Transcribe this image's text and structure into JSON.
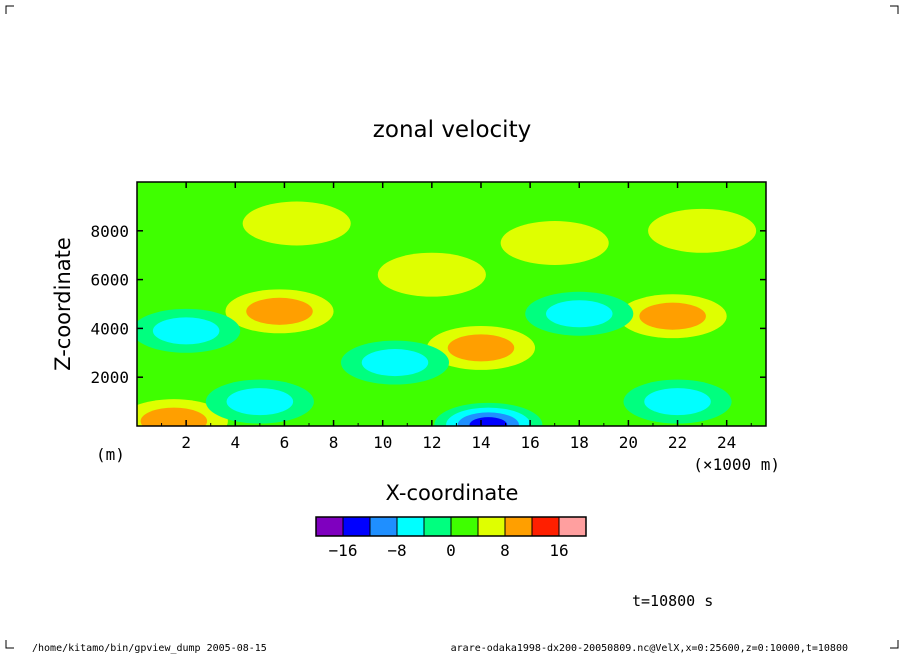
{
  "chart_data": {
    "type": "heatmap",
    "title": "zonal velocity",
    "xlabel": "X-coordinate",
    "ylabel": "Z-coordinate",
    "x_unit": "(×1000 m)",
    "y_unit": "(m)",
    "xlim": [
      0,
      25.6
    ],
    "ylim": [
      0,
      10000
    ],
    "x_ticks": [
      "2",
      "4",
      "6",
      "8",
      "10",
      "12",
      "14",
      "16",
      "18",
      "20",
      "22",
      "24"
    ],
    "y_ticks": [
      "2000",
      "4000",
      "6000",
      "8000"
    ],
    "colorbar": {
      "ticks": [
        "−16",
        "−8",
        "0",
        "8",
        "16"
      ],
      "levels": [
        -20,
        -16,
        -12,
        -8,
        -4,
        0,
        4,
        8,
        12,
        16,
        20
      ],
      "colors": [
        "#7f00bf",
        "#0000ff",
        "#1f8fff",
        "#00ffff",
        "#00ff7f",
        "#3fff00",
        "#dfff00",
        "#ff9f00",
        "#ff1f00",
        "#ff9f9f"
      ]
    },
    "field_features": [
      {
        "x": 1.5,
        "z": 200,
        "value": 9
      },
      {
        "x": 5.8,
        "z": 4700,
        "value": 10
      },
      {
        "x": 14.0,
        "z": 3200,
        "value": 10
      },
      {
        "x": 21.8,
        "z": 4500,
        "value": 10
      },
      {
        "x": 14.3,
        "z": 50,
        "value": -12
      },
      {
        "x": 2.0,
        "z": 3900,
        "value": -6
      },
      {
        "x": 5.0,
        "z": 1000,
        "value": -6
      },
      {
        "x": 18.0,
        "z": 4600,
        "value": -6
      },
      {
        "x": 22.0,
        "z": 1000,
        "value": -6
      },
      {
        "x": 10.5,
        "z": 2600,
        "value": -5
      },
      {
        "x": 6.5,
        "z": 8300,
        "value": 5
      },
      {
        "x": 12.0,
        "z": 6200,
        "value": 4
      },
      {
        "x": 17.0,
        "z": 7500,
        "value": 4
      },
      {
        "x": 23.0,
        "z": 8000,
        "value": 4
      }
    ]
  },
  "time_label": "t=10800 s",
  "footer": {
    "left": "/home/kitamo/bin/gpview_dump  2005-08-15",
    "right": "arare-odaka1998-dx200-20050809.nc@VelX,x=0:25600,z=0:10000,t=10800"
  }
}
